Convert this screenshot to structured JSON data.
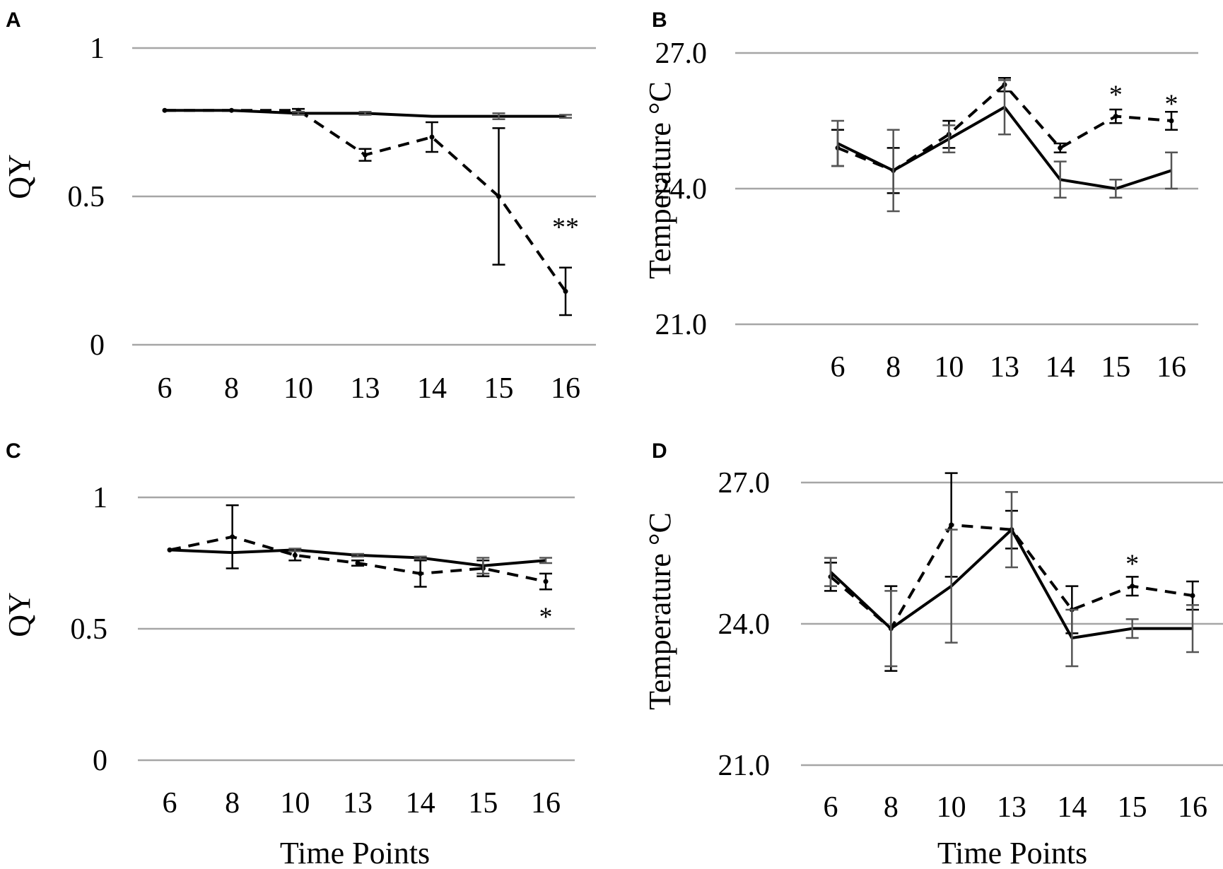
{
  "chart_data": [
    {
      "panel": "A",
      "type": "line",
      "ylabel": "QY",
      "xlabel": "",
      "categories": [
        "6",
        "8",
        "10",
        "13",
        "14",
        "15",
        "16"
      ],
      "ylim": [
        0,
        1
      ],
      "yticks": [
        "0",
        "0.5",
        "1"
      ],
      "series": [
        {
          "name": "solid",
          "style": "solid",
          "values": [
            0.79,
            0.79,
            0.78,
            0.78,
            0.77,
            0.77,
            0.77
          ],
          "errors": [
            0.0,
            0.0,
            0.005,
            0.005,
            0.0,
            0.01,
            0.005
          ]
        },
        {
          "name": "dashed",
          "style": "dashed",
          "values": [
            0.79,
            0.79,
            0.79,
            0.64,
            0.7,
            0.5,
            0.18
          ],
          "errors": [
            0.0,
            0.0,
            0.005,
            0.02,
            0.05,
            0.23,
            0.08
          ]
        }
      ],
      "annotations": [
        {
          "category": "16",
          "text": "**",
          "value": 0.4
        }
      ]
    },
    {
      "panel": "B",
      "type": "line",
      "ylabel": "Temperature °C",
      "xlabel": "",
      "categories": [
        "6",
        "8",
        "10",
        "13",
        "14",
        "15",
        "16"
      ],
      "ylim": [
        21,
        27
      ],
      "yticks": [
        "21.0",
        "24.0",
        "27.0"
      ],
      "series": [
        {
          "name": "solid",
          "style": "solid",
          "values": [
            25.0,
            24.4,
            25.1,
            25.8,
            24.2,
            24.0,
            24.4
          ],
          "errors": [
            0.5,
            0.9,
            0.3,
            0.6,
            0.4,
            0.2,
            0.4
          ]
        },
        {
          "name": "dashed",
          "style": "dashed",
          "values": [
            24.9,
            24.4,
            25.2,
            26.3,
            24.9,
            25.6,
            25.5
          ],
          "errors": [
            0.4,
            0.5,
            0.3,
            0.15,
            0.1,
            0.15,
            0.2
          ]
        }
      ],
      "annotations": [
        {
          "category": "15",
          "text": "*",
          "value": 26.1
        },
        {
          "category": "16",
          "text": "*",
          "value": 25.9
        }
      ]
    },
    {
      "panel": "C",
      "type": "line",
      "ylabel": "QY",
      "xlabel": "Time Points",
      "categories": [
        "6",
        "8",
        "10",
        "13",
        "14",
        "15",
        "16"
      ],
      "ylim": [
        0,
        1
      ],
      "yticks": [
        "0",
        "0.5",
        "1"
      ],
      "series": [
        {
          "name": "solid",
          "style": "solid",
          "values": [
            0.8,
            0.79,
            0.8,
            0.78,
            0.77,
            0.74,
            0.76
          ],
          "errors": [
            0.0,
            0.0,
            0.005,
            0.005,
            0.005,
            0.03,
            0.01
          ]
        },
        {
          "name": "dashed",
          "style": "dashed",
          "values": [
            0.8,
            0.85,
            0.78,
            0.75,
            0.71,
            0.73,
            0.68
          ],
          "errors": [
            0.0,
            0.12,
            0.02,
            0.01,
            0.05,
            0.03,
            0.03
          ]
        }
      ],
      "annotations": [
        {
          "category": "16",
          "text": "*",
          "value": 0.55
        }
      ]
    },
    {
      "panel": "D",
      "type": "line",
      "ylabel": "Temperature °C",
      "xlabel": "Time Points",
      "categories": [
        "6",
        "8",
        "10",
        "13",
        "14",
        "15",
        "16"
      ],
      "ylim": [
        21,
        27
      ],
      "yticks": [
        "21.0",
        "24.0",
        "27.0"
      ],
      "series": [
        {
          "name": "solid",
          "style": "solid",
          "values": [
            25.1,
            23.9,
            24.8,
            26.0,
            23.7,
            23.9,
            23.9
          ],
          "errors": [
            0.3,
            0.8,
            1.2,
            0.8,
            0.6,
            0.2,
            0.5
          ]
        },
        {
          "name": "dashed",
          "style": "dashed",
          "values": [
            25.0,
            23.9,
            26.1,
            26.0,
            24.3,
            24.8,
            24.6
          ],
          "errors": [
            0.3,
            0.9,
            1.1,
            0.4,
            0.5,
            0.2,
            0.3
          ]
        }
      ],
      "annotations": [
        {
          "category": "15",
          "text": "*",
          "value": 25.3
        }
      ]
    }
  ]
}
